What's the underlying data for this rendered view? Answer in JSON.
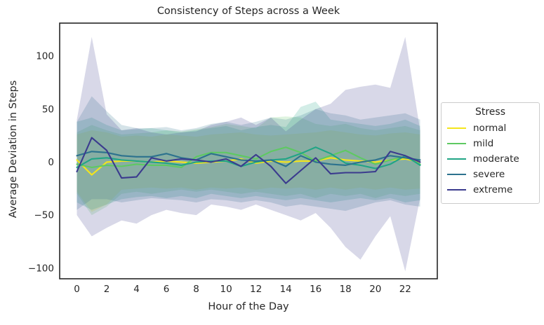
{
  "chart_data": {
    "type": "line",
    "title": "Consistency of Steps across a Week",
    "xlabel": "Hour of the Day",
    "ylabel": "Average Deviation in Steps",
    "xlim": [
      -1.15,
      24.15
    ],
    "ylim": [
      -110,
      131
    ],
    "xticks": [
      0,
      2,
      4,
      6,
      8,
      10,
      12,
      14,
      16,
      18,
      20,
      22
    ],
    "yticks": [
      -100,
      -50,
      0,
      50,
      100
    ],
    "x": [
      0,
      1,
      2,
      3,
      4,
      5,
      6,
      7,
      8,
      9,
      10,
      11,
      12,
      13,
      14,
      15,
      16,
      17,
      18,
      19,
      20,
      21,
      22,
      23
    ],
    "grid": false,
    "band_alpha": 0.2,
    "legend": {
      "title": "Stress",
      "position": "center right"
    },
    "series": [
      {
        "name": "normal",
        "color": "#f4e51c",
        "values": [
          2,
          -12,
          0,
          1,
          1,
          0,
          1,
          0,
          -1,
          0,
          1,
          3,
          -1,
          1,
          0,
          1,
          1,
          4,
          2,
          1,
          0,
          2,
          3,
          0
        ],
        "lower": [
          -28,
          -47,
          -40,
          -26,
          -25,
          -24,
          -25,
          -24,
          -26,
          -24,
          -25,
          -24,
          -26,
          -24,
          -25,
          -24,
          -26,
          -24,
          -26,
          -24,
          -26,
          -24,
          -26,
          -25
        ],
        "upper": [
          26,
          30,
          28,
          24,
          25,
          24,
          26,
          25,
          24,
          26,
          27,
          28,
          26,
          25,
          26,
          27,
          28,
          30,
          28,
          26,
          25,
          27,
          28,
          26
        ]
      },
      {
        "name": "mild",
        "color": "#5ec962",
        "values": [
          -2,
          -5,
          -3,
          -4,
          -2,
          -3,
          -3,
          -5,
          5,
          9,
          9,
          6,
          3,
          10,
          14,
          9,
          1,
          6,
          11,
          4,
          -2,
          2,
          5,
          -2
        ],
        "lower": [
          -30,
          -50,
          -42,
          -30,
          -28,
          -30,
          -28,
          -26,
          -28,
          -26,
          -28,
          -30,
          -28,
          -30,
          -32,
          -30,
          -34,
          -30,
          -32,
          -30,
          -34,
          -30,
          -32,
          -30
        ],
        "upper": [
          28,
          35,
          30,
          26,
          27,
          28,
          30,
          29,
          31,
          33,
          36,
          34,
          32,
          42,
          43,
          42,
          36,
          34,
          36,
          32,
          30,
          32,
          34,
          30
        ]
      },
      {
        "name": "moderate",
        "color": "#21a585",
        "values": [
          -5,
          3,
          4,
          2,
          1,
          0,
          -1,
          -3,
          0,
          1,
          1,
          -4,
          0,
          2,
          3,
          8,
          14,
          8,
          -1,
          -3,
          -6,
          -2,
          6,
          -3
        ],
        "lower": [
          -38,
          -45,
          -40,
          -35,
          -33,
          -32,
          -34,
          -32,
          -34,
          -30,
          -32,
          -34,
          -32,
          -34,
          -36,
          -34,
          -36,
          -38,
          -36,
          -34,
          -36,
          -34,
          -38,
          -36
        ],
        "upper": [
          38,
          42,
          35,
          30,
          31,
          32,
          30,
          28,
          30,
          32,
          34,
          30,
          33,
          35,
          33,
          52,
          57,
          40,
          38,
          36,
          34,
          36,
          40,
          34
        ]
      },
      {
        "name": "severe",
        "color": "#2c728e",
        "values": [
          6,
          10,
          9,
          6,
          5,
          5,
          8,
          4,
          2,
          8,
          5,
          2,
          1,
          2,
          -4,
          6,
          0,
          -2,
          -3,
          0,
          2,
          6,
          4,
          2
        ],
        "lower": [
          -45,
          -35,
          -35,
          -38,
          -36,
          -34,
          -35,
          -36,
          -38,
          -35,
          -36,
          -38,
          -36,
          -38,
          -42,
          -40,
          -42,
          -44,
          -46,
          -42,
          -38,
          -36,
          -40,
          -42
        ],
        "upper": [
          38,
          62,
          48,
          35,
          32,
          32,
          33,
          30,
          32,
          36,
          38,
          35,
          38,
          42,
          40,
          44,
          50,
          46,
          44,
          40,
          42,
          44,
          46,
          40
        ]
      },
      {
        "name": "extreme",
        "color": "#3b3b8e",
        "values": [
          -9,
          23,
          11,
          -15,
          -14,
          4,
          1,
          3,
          2,
          0,
          3,
          -4,
          7,
          -4,
          -20,
          -8,
          4,
          -11,
          -10,
          -10,
          -9,
          10,
          6,
          0
        ],
        "lower": [
          -50,
          -70,
          -62,
          -55,
          -58,
          -50,
          -45,
          -48,
          -50,
          -40,
          -42,
          -45,
          -40,
          -45,
          -50,
          -55,
          -48,
          -62,
          -80,
          -92,
          -70,
          -51,
          -103,
          -34
        ],
        "upper": [
          40,
          118,
          45,
          30,
          32,
          28,
          26,
          28,
          29,
          35,
          38,
          42,
          35,
          42,
          29,
          40,
          50,
          55,
          68,
          71,
          73,
          70,
          118,
          30
        ]
      }
    ]
  }
}
